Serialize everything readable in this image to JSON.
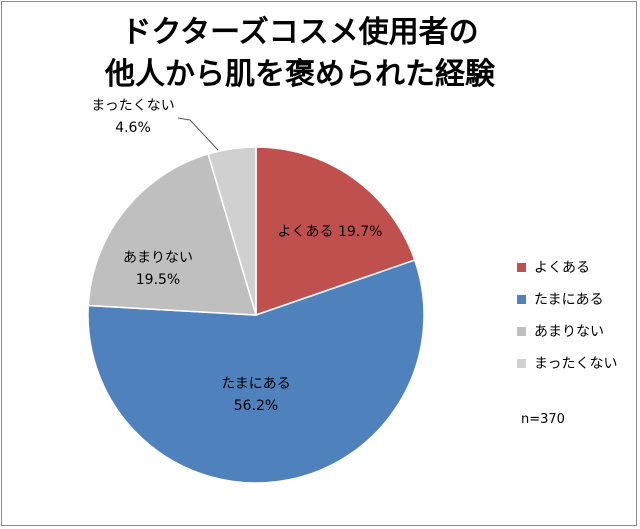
{
  "chart_data": {
    "type": "pie",
    "title_line1": "ドクターズコスメ使用者の",
    "title_line2": "他人から肌を褒められた経験",
    "slices": [
      {
        "name": "よくある",
        "value": 19.7,
        "label": "19.7%",
        "color": "#c0504d"
      },
      {
        "name": "たまにある",
        "value": 56.2,
        "label": "56.2%",
        "color": "#4f81bd"
      },
      {
        "name": "あまりない",
        "value": 19.5,
        "label": "19.5%",
        "color": "#bfbfbf"
      },
      {
        "name": "まったくない",
        "value": 4.6,
        "label": "4.6%",
        "color": "#d0d0d0"
      }
    ],
    "legend_position": "right",
    "note": "n=370"
  }
}
